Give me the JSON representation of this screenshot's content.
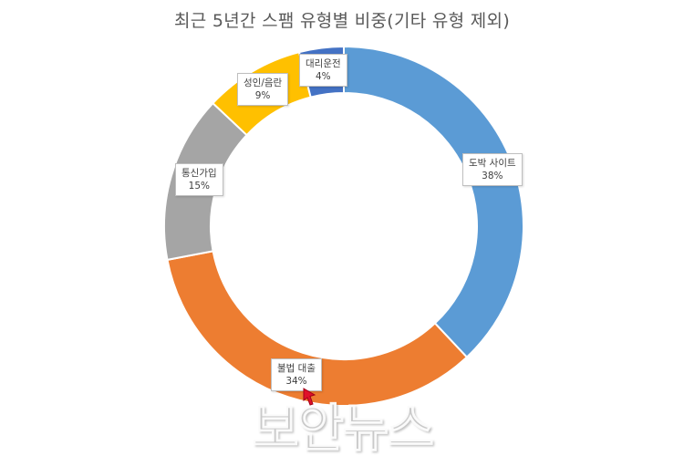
{
  "chart_data": {
    "type": "pie",
    "subtype": "doughnut",
    "title": "최근 5년간 스팸 유형별 비중(기타 유형 제외)",
    "start_angle_deg": 0,
    "direction": "clockwise",
    "categories": [
      "도박 사이트",
      "불법 대출",
      "통신가입",
      "성인/음란",
      "대리운전"
    ],
    "values": [
      38,
      34,
      15,
      9,
      4
    ],
    "value_labels": [
      "38%",
      "34%",
      "15%",
      "9%",
      "4%"
    ],
    "colors": [
      "#5B9BD5",
      "#ED7D31",
      "#A5A5A5",
      "#FFC000",
      "#4472C4"
    ],
    "legend": "none",
    "data_labels": "callout boxes"
  },
  "watermark": {
    "text": "보안뉴스"
  }
}
